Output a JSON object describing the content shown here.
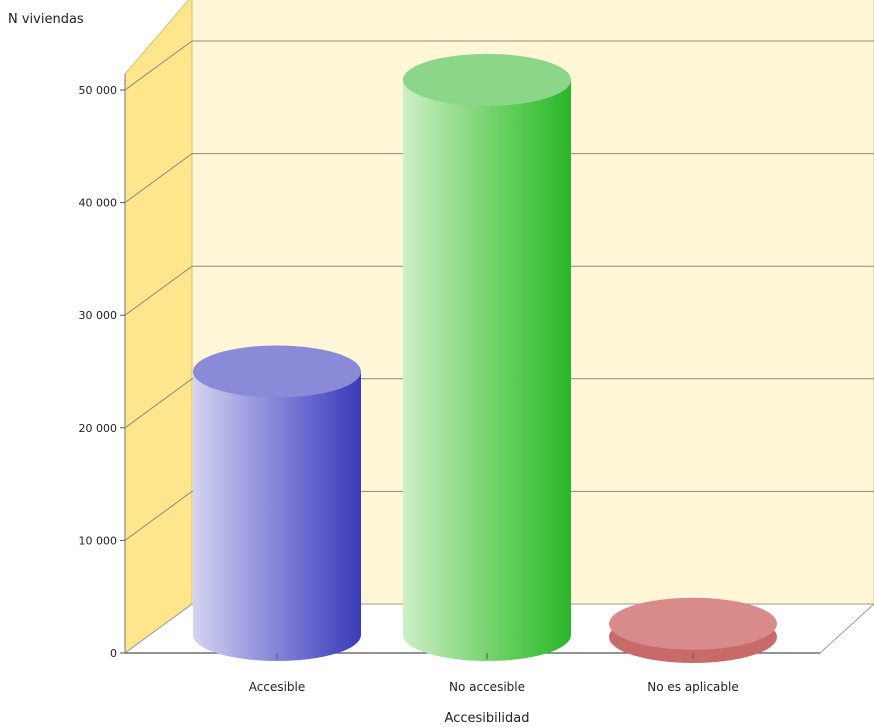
{
  "chart_data": {
    "type": "bar",
    "style": "3d-cylinder",
    "title": "",
    "ylabel": "N  viviendas",
    "xlabel": "Accesibilidad",
    "categories": [
      "Accesible",
      "No accesible",
      "No es aplicable"
    ],
    "values": [
      23400,
      49300,
      1000
    ],
    "ylim": [
      0,
      50000
    ],
    "yticks": [
      0,
      10000,
      20000,
      30000,
      40000,
      50000
    ],
    "ytick_labels": [
      "0",
      "10 000",
      "20 000",
      "30 000",
      "40 000",
      "50 000"
    ],
    "grid": true,
    "legend": "none",
    "colors": {
      "Accesible": "#6666cc",
      "No accesible": "#66cc66",
      "No es aplicable": "#d98a8a",
      "back_wall": "#fff6d8",
      "side_wall": "#ffe58c"
    }
  }
}
